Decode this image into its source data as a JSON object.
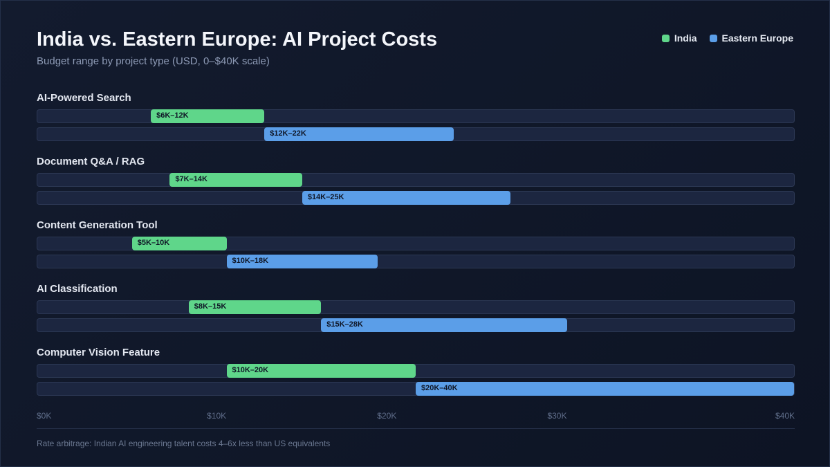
{
  "chart_data": {
    "type": "range-bar",
    "title": "India vs. Eastern Europe: AI Project Costs",
    "subtitle": "Budget range by project type (USD, 0–$40K scale)",
    "xlim": [
      0,
      40
    ],
    "x_ticks": [
      "$0K",
      "$10K",
      "$20K",
      "$30K",
      "$40K"
    ],
    "x_tick_values": [
      0,
      10,
      20,
      30,
      40
    ],
    "legend": {
      "placement": "top-right",
      "items": [
        {
          "label": "India",
          "color": "#5fd68a"
        },
        {
          "label": "Eastern Europe",
          "color": "#5b9ee8"
        }
      ]
    },
    "categories": [
      {
        "name": "AI-Powered Search",
        "india": {
          "low": 6,
          "high": 12,
          "label": "$6K–12K"
        },
        "eastern_europe": {
          "low": 12,
          "high": 22,
          "label": "$12K–22K"
        }
      },
      {
        "name": "Document Q&A / RAG",
        "india": {
          "low": 7,
          "high": 14,
          "label": "$7K–14K"
        },
        "eastern_europe": {
          "low": 14,
          "high": 25,
          "label": "$14K–25K"
        }
      },
      {
        "name": "Content Generation Tool",
        "india": {
          "low": 5,
          "high": 10,
          "label": "$5K–10K"
        },
        "eastern_europe": {
          "low": 10,
          "high": 18,
          "label": "$10K–18K"
        }
      },
      {
        "name": "AI Classification",
        "india": {
          "low": 8,
          "high": 15,
          "label": "$8K–15K"
        },
        "eastern_europe": {
          "low": 15,
          "high": 28,
          "label": "$15K–28K"
        }
      },
      {
        "name": "Computer Vision Feature",
        "india": {
          "low": 10,
          "high": 20,
          "label": "$10K–20K"
        },
        "eastern_europe": {
          "low": 20,
          "high": 40,
          "label": "$20K–40K"
        }
      }
    ],
    "footnote": "Rate arbitrage: Indian AI engineering talent costs 4–6x less than US equivalents"
  }
}
